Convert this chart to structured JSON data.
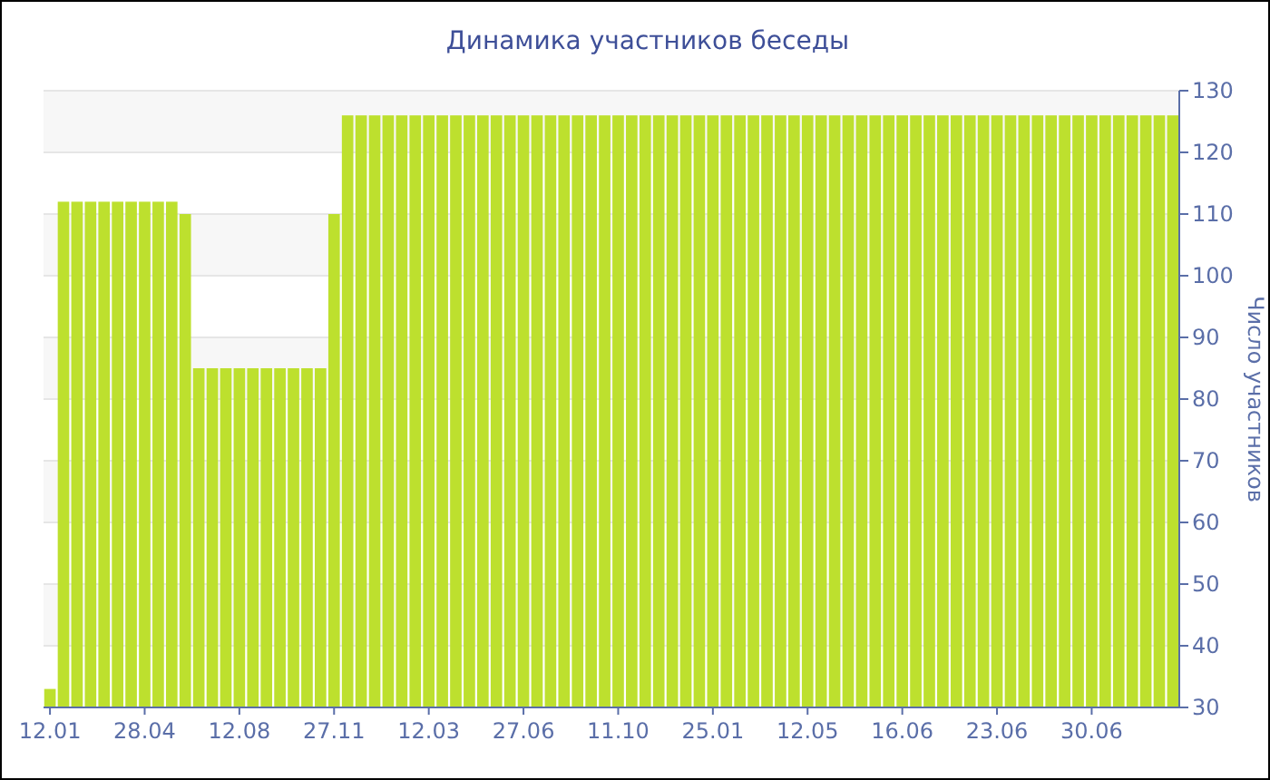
{
  "chart_data": {
    "type": "bar",
    "title": "Динамика участников беседы",
    "ylabel": "Число участников",
    "categories": [
      "12.01",
      null,
      null,
      null,
      null,
      null,
      null,
      "28.04",
      null,
      null,
      null,
      null,
      null,
      null,
      "12.08",
      null,
      null,
      null,
      null,
      null,
      null,
      "27.11",
      null,
      null,
      null,
      null,
      null,
      null,
      "12.03",
      null,
      null,
      null,
      null,
      null,
      null,
      "27.06",
      null,
      null,
      null,
      null,
      null,
      null,
      "11.10",
      null,
      null,
      null,
      null,
      null,
      null,
      "25.01",
      null,
      null,
      null,
      null,
      null,
      null,
      "12.05",
      null,
      null,
      null,
      null,
      null,
      null,
      "16.06",
      null,
      null,
      null,
      null,
      null,
      null,
      "23.06",
      null,
      null,
      null,
      null,
      null,
      null,
      "30.06",
      null,
      null,
      null,
      null,
      null,
      null
    ],
    "values": [
      33,
      112,
      112,
      112,
      112,
      112,
      112,
      112,
      112,
      112,
      110,
      85,
      85,
      85,
      85,
      85,
      85,
      85,
      85,
      85,
      85,
      110,
      126,
      126,
      126,
      126,
      126,
      126,
      126,
      126,
      126,
      126,
      126,
      126,
      126,
      126,
      126,
      126,
      126,
      126,
      126,
      126,
      126,
      126,
      126,
      126,
      126,
      126,
      126,
      126,
      126,
      126,
      126,
      126,
      126,
      126,
      126,
      126,
      126,
      126,
      126,
      126,
      126,
      126,
      126,
      126,
      126,
      126,
      126,
      126,
      126,
      126,
      126,
      126,
      126,
      126,
      126,
      126,
      126,
      126,
      126,
      126,
      126,
      126
    ],
    "color": "#bde02e",
    "ylim": [
      30,
      130
    ],
    "yticks": [
      30,
      40,
      50,
      60,
      70,
      80,
      90,
      100,
      110,
      120,
      130
    ],
    "grid": "y"
  }
}
